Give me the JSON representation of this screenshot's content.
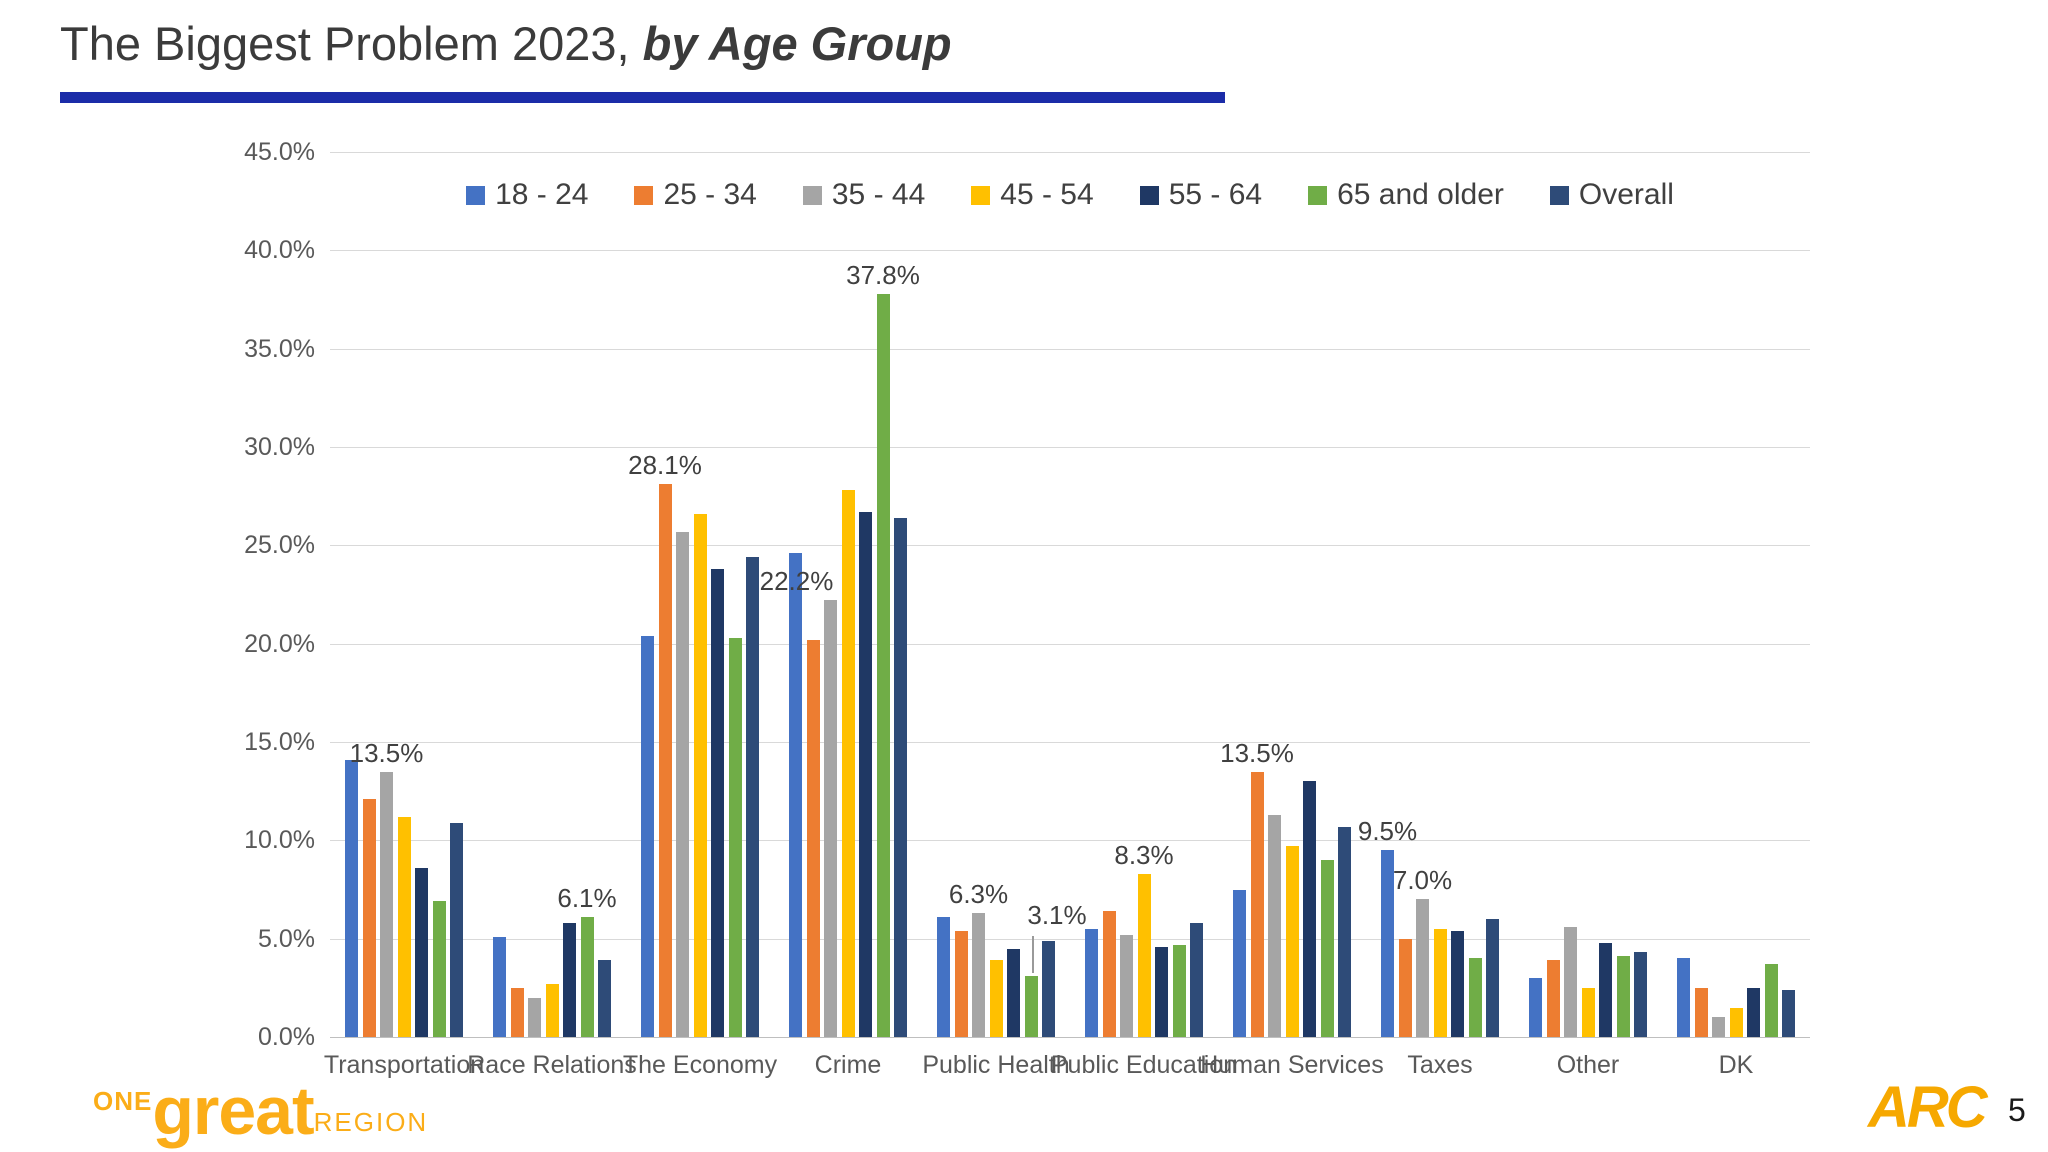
{
  "slide": {
    "title_regular": "The Biggest Problem 2023, ",
    "title_italic": "by Age Group",
    "page_number": "5",
    "footer_left": {
      "one": "ONE",
      "great": "great",
      "region": "REGION"
    },
    "footer_right_logo": "ARC"
  },
  "colors": {
    "title_underline": "#1b2ca8",
    "logo_gold": "#fbad18",
    "arc_gold": "#f6a800",
    "gridline": "#d9d9d9",
    "axis_text": "#595959",
    "label_text": "#404040"
  },
  "chart_data": {
    "type": "bar",
    "title": "The Biggest Problem 2023, by Age Group",
    "xlabel": "",
    "ylabel": "",
    "ylim": [
      0,
      45
    ],
    "ytick_step": 5,
    "ytick_labels": [
      "0.0%",
      "5.0%",
      "10.0%",
      "15.0%",
      "20.0%",
      "25.0%",
      "30.0%",
      "35.0%",
      "40.0%",
      "45.0%"
    ],
    "grid": true,
    "legend_position": "top-center",
    "categories": [
      "Transportation",
      "Race Relations",
      "The Economy",
      "Crime",
      "Public Health",
      "Public Education",
      "Human Services",
      "Taxes",
      "Other",
      "DK"
    ],
    "series": [
      {
        "name": "18 - 24",
        "color": "#4472c4",
        "values": [
          14.1,
          5.1,
          20.4,
          24.6,
          6.1,
          5.5,
          7.5,
          9.5,
          3.0,
          4.0
        ]
      },
      {
        "name": "25 - 34",
        "color": "#ed7d31",
        "values": [
          12.1,
          2.5,
          28.1,
          20.2,
          5.4,
          6.4,
          13.5,
          5.0,
          3.9,
          2.5
        ]
      },
      {
        "name": "35 - 44",
        "color": "#a5a5a5",
        "values": [
          13.5,
          2.0,
          25.7,
          22.2,
          6.3,
          5.2,
          11.3,
          7.0,
          5.6,
          1.0
        ]
      },
      {
        "name": "45 - 54",
        "color": "#ffc000",
        "values": [
          11.2,
          2.7,
          26.6,
          27.8,
          3.9,
          8.3,
          9.7,
          5.5,
          2.5,
          1.5
        ]
      },
      {
        "name": "55 - 64",
        "color": "#1f3864",
        "values": [
          8.6,
          5.8,
          23.8,
          26.7,
          4.5,
          4.6,
          13.0,
          5.4,
          4.8,
          2.5
        ]
      },
      {
        "name": "65 and older",
        "color": "#70ad47",
        "values": [
          6.9,
          6.1,
          20.3,
          37.8,
          3.1,
          4.7,
          9.0,
          4.0,
          4.1,
          3.7
        ]
      },
      {
        "name": "Overall",
        "color": "#2e4b78",
        "values": [
          10.9,
          3.9,
          24.4,
          26.4,
          4.9,
          5.8,
          10.7,
          6.0,
          4.3,
          2.4
        ]
      }
    ],
    "data_labels": [
      {
        "category": "Transportation",
        "series": "35 - 44",
        "text": "13.5%"
      },
      {
        "category": "Race Relations",
        "series": "65 and older",
        "text": "6.1%"
      },
      {
        "category": "The Economy",
        "series": "25 - 34",
        "text": "28.1%"
      },
      {
        "category": "Crime",
        "series": "35 - 44",
        "text": "22.2%",
        "dx": -34
      },
      {
        "category": "Crime",
        "series": "65 and older",
        "text": "37.8%"
      },
      {
        "category": "Public Health",
        "series": "35 - 44",
        "text": "6.3%"
      },
      {
        "category": "Public Health",
        "series": "65 and older",
        "text": "3.1%",
        "dx": 26,
        "dy": -42,
        "leader": true
      },
      {
        "category": "Public Education",
        "series": "45 - 54",
        "text": "8.3%"
      },
      {
        "category": "Human Services",
        "series": "25 - 34",
        "text": "13.5%"
      },
      {
        "category": "Taxes",
        "series": "18 - 24",
        "text": "9.5%"
      },
      {
        "category": "Taxes",
        "series": "35 - 44",
        "text": "7.0%"
      }
    ]
  }
}
